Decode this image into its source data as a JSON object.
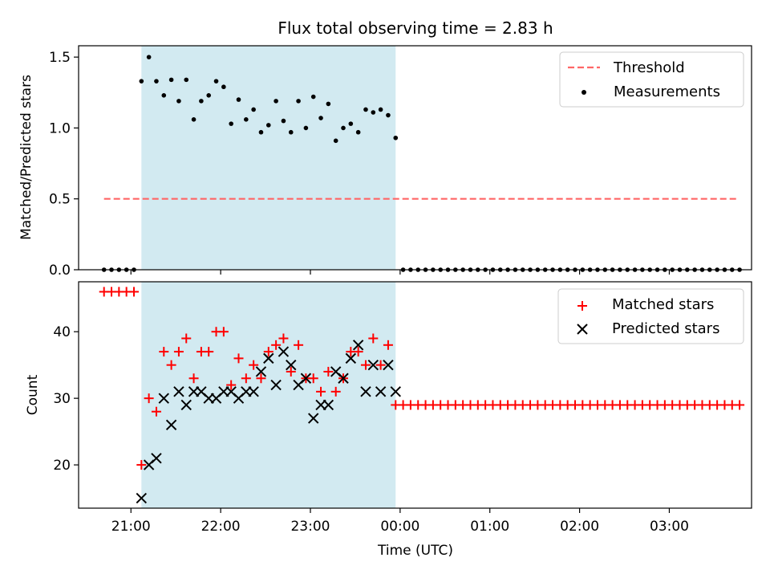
{
  "title": "Flux total observing time = 2.83 h",
  "xlabel": "Time (UTC)",
  "x_ticks": [
    "21:00",
    "22:00",
    "23:00",
    "00:00",
    "01:00",
    "02:00",
    "03:00"
  ],
  "colors": {
    "shade": "#add8e6",
    "threshold": "#ff6666",
    "measurements": "#000000",
    "matched": "#ff0000",
    "predicted": "#000000"
  },
  "chart_data": [
    {
      "type": "scatter",
      "panel": "top",
      "ylabel": "Matched/Predicted stars",
      "xlim": [
        "20:25",
        "03:55"
      ],
      "ylim": [
        0,
        1.58
      ],
      "y_ticks": [
        "0.0",
        "0.5",
        "1.0",
        "1.5"
      ],
      "shaded_interval": [
        "21:07",
        "23:57"
      ],
      "legend": {
        "position": "top-right",
        "entries": [
          "Threshold",
          "Measurements"
        ]
      },
      "threshold": {
        "name": "Threshold",
        "value": 0.5,
        "x_range": [
          "20:42",
          "03:45"
        ]
      },
      "series": [
        {
          "name": "Measurements",
          "x": [
            "20:42",
            "20:47",
            "20:52",
            "20:57",
            "21:02",
            "21:07",
            "21:12",
            "21:17",
            "21:22",
            "21:27",
            "21:32",
            "21:37",
            "21:42",
            "21:47",
            "21:52",
            "21:57",
            "22:02",
            "22:07",
            "22:12",
            "22:17",
            "22:22",
            "22:27",
            "22:32",
            "22:37",
            "22:42",
            "22:47",
            "22:52",
            "22:57",
            "23:02",
            "23:07",
            "23:12",
            "23:17",
            "23:22",
            "23:27",
            "23:32",
            "23:37",
            "23:42",
            "23:47",
            "23:52",
            "23:57",
            "00:02",
            "00:07",
            "00:12",
            "00:17",
            "00:22",
            "00:27",
            "00:32",
            "00:37",
            "00:42",
            "00:47",
            "00:52",
            "00:57",
            "01:02",
            "01:07",
            "01:12",
            "01:17",
            "01:22",
            "01:27",
            "01:32",
            "01:37",
            "01:42",
            "01:47",
            "01:52",
            "01:57",
            "02:02",
            "02:07",
            "02:12",
            "02:17",
            "02:22",
            "02:27",
            "02:32",
            "02:37",
            "02:42",
            "02:47",
            "02:52",
            "02:57",
            "03:02",
            "03:07",
            "03:12",
            "03:17",
            "03:22",
            "03:27",
            "03:32",
            "03:37",
            "03:42",
            "03:47"
          ],
          "y": [
            0,
            0,
            0,
            0,
            0,
            1.33,
            1.5,
            1.33,
            1.23,
            1.34,
            1.19,
            1.34,
            1.06,
            1.19,
            1.23,
            1.33,
            1.29,
            1.03,
            1.2,
            1.06,
            1.13,
            0.97,
            1.02,
            1.19,
            1.05,
            0.97,
            1.19,
            1.0,
            1.22,
            1.07,
            1.17,
            0.91,
            1.0,
            1.03,
            0.97,
            1.13,
            1.11,
            1.13,
            1.09,
            0.93,
            0,
            0,
            0,
            0,
            0,
            0,
            0,
            0,
            0,
            0,
            0,
            0,
            0,
            0,
            0,
            0,
            0,
            0,
            0,
            0,
            0,
            0,
            0,
            0,
            0,
            0,
            0,
            0,
            0,
            0,
            0,
            0,
            0,
            0,
            0,
            0,
            0,
            0,
            0,
            0,
            0,
            0,
            0,
            0,
            0,
            0
          ]
        }
      ]
    },
    {
      "type": "scatter",
      "panel": "bottom",
      "ylabel": "Count",
      "xlim": [
        "20:25",
        "03:55"
      ],
      "ylim": [
        13.5,
        47.5
      ],
      "y_ticks": [
        "20",
        "30",
        "40"
      ],
      "shaded_interval": [
        "21:07",
        "23:57"
      ],
      "legend": {
        "position": "top-right",
        "entries": [
          "Matched stars",
          "Predicted stars"
        ]
      },
      "series": [
        {
          "name": "Matched stars",
          "marker": "+",
          "x": [
            "20:42",
            "20:47",
            "20:52",
            "20:57",
            "21:02",
            "21:07",
            "21:12",
            "21:17",
            "21:22",
            "21:27",
            "21:32",
            "21:37",
            "21:42",
            "21:47",
            "21:52",
            "21:57",
            "22:02",
            "22:07",
            "22:12",
            "22:17",
            "22:22",
            "22:27",
            "22:32",
            "22:37",
            "22:42",
            "22:47",
            "22:52",
            "22:57",
            "23:02",
            "23:07",
            "23:12",
            "23:17",
            "23:22",
            "23:27",
            "23:32",
            "23:37",
            "23:42",
            "23:47",
            "23:52",
            "23:57",
            "00:02",
            "00:07",
            "00:12",
            "00:17",
            "00:22",
            "00:27",
            "00:32",
            "00:37",
            "00:42",
            "00:47",
            "00:52",
            "00:57",
            "01:02",
            "01:07",
            "01:12",
            "01:17",
            "01:22",
            "01:27",
            "01:32",
            "01:37",
            "01:42",
            "01:47",
            "01:52",
            "01:57",
            "02:02",
            "02:07",
            "02:12",
            "02:17",
            "02:22",
            "02:27",
            "02:32",
            "02:37",
            "02:42",
            "02:47",
            "02:52",
            "02:57",
            "03:02",
            "03:07",
            "03:12",
            "03:17",
            "03:22",
            "03:27",
            "03:32",
            "03:37",
            "03:42",
            "03:47"
          ],
          "y": [
            46,
            46,
            46,
            46,
            46,
            20,
            30,
            28,
            37,
            35,
            37,
            39,
            33,
            37,
            37,
            40,
            40,
            32,
            36,
            33,
            35,
            33,
            37,
            38,
            39,
            34,
            38,
            33,
            33,
            31,
            34,
            31,
            33,
            37,
            37,
            35,
            39,
            35,
            38,
            29,
            29,
            29,
            29,
            29,
            29,
            29,
            29,
            29,
            29,
            29,
            29,
            29,
            29,
            29,
            29,
            29,
            29,
            29,
            29,
            29,
            29,
            29,
            29,
            29,
            29,
            29,
            29,
            29,
            29,
            29,
            29,
            29,
            29,
            29,
            29,
            29,
            29,
            29,
            29,
            29,
            29,
            29,
            29,
            29,
            29,
            29
          ]
        },
        {
          "name": "Predicted stars",
          "marker": "x",
          "x": [
            "21:07",
            "21:12",
            "21:17",
            "21:22",
            "21:27",
            "21:32",
            "21:37",
            "21:42",
            "21:47",
            "21:52",
            "21:57",
            "22:02",
            "22:07",
            "22:12",
            "22:17",
            "22:22",
            "22:27",
            "22:32",
            "22:37",
            "22:42",
            "22:47",
            "22:52",
            "22:57",
            "23:02",
            "23:07",
            "23:12",
            "23:17",
            "23:22",
            "23:27",
            "23:32",
            "23:37",
            "23:42",
            "23:47",
            "23:52",
            "23:57"
          ],
          "y": [
            15,
            20,
            21,
            30,
            26,
            31,
            29,
            31,
            31,
            30,
            30,
            31,
            31,
            30,
            31,
            31,
            34,
            36,
            32,
            37,
            35,
            32,
            33,
            27,
            29,
            29,
            34,
            33,
            36,
            38,
            31,
            35,
            31,
            35,
            31
          ]
        }
      ]
    }
  ]
}
